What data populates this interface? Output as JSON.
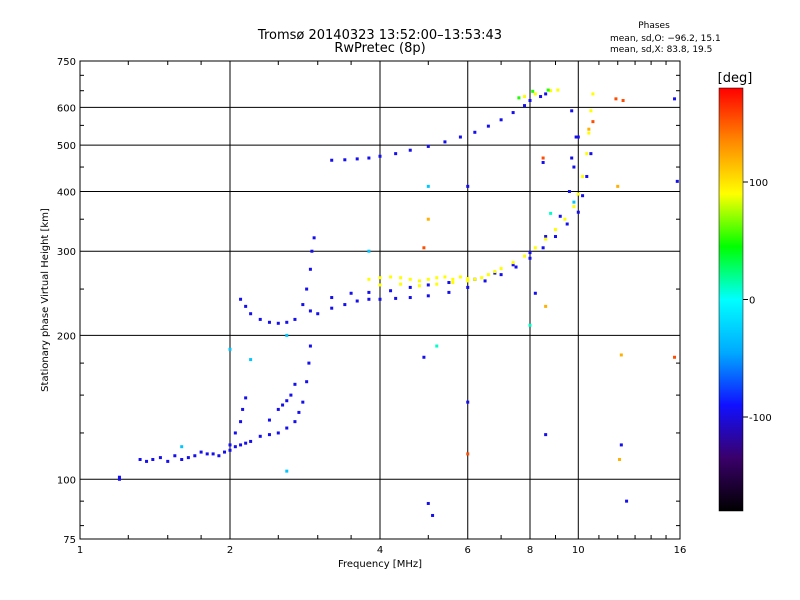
{
  "chart_data": {
    "type": "scatter",
    "title": "Tromsø 20140323 13:52:00–13:53:43",
    "subtitle": "RwPretec (8p)",
    "xlabel": "Frequency [MHz]",
    "ylabel": "Stationary phase Virtual Height [km]",
    "x_scale": "log",
    "y_scale": "log",
    "xlim": [
      1,
      16
    ],
    "ylim": [
      75,
      750
    ],
    "x_ticks": [
      {
        "v": 1,
        "label": "1"
      },
      {
        "v": 2,
        "label": "2"
      },
      {
        "v": 4,
        "label": "4"
      },
      {
        "v": 6,
        "label": "6"
      },
      {
        "v": 8,
        "label": "8"
      },
      {
        "v": 10,
        "label": "10"
      },
      {
        "v": 16,
        "label": "16"
      }
    ],
    "x_grid": [
      2,
      4,
      6,
      8,
      10
    ],
    "y_ticks": [
      {
        "v": 75,
        "label": "75"
      },
      {
        "v": 100,
        "label": "100"
      },
      {
        "v": 200,
        "label": "200"
      },
      {
        "v": 300,
        "label": "300"
      },
      {
        "v": 400,
        "label": "400"
      },
      {
        "v": 500,
        "label": "500"
      },
      {
        "v": 600,
        "label": "600"
      },
      {
        "v": 750,
        "label": "750"
      }
    ],
    "y_grid": [
      100,
      200,
      300,
      400,
      500,
      600
    ],
    "grid": true,
    "phases_label": "Phases",
    "phase_stats": [
      "mean, sd,O: −96.2, 15.1",
      "mean, sd,X:  83.8, 19.5"
    ],
    "colorbar": {
      "unit": "[deg]",
      "range": [
        -180,
        180
      ],
      "ticks": [
        {
          "v": 100,
          "label": "100"
        },
        {
          "v": 0,
          "label": "0"
        },
        {
          "v": -100,
          "label": "-100"
        }
      ],
      "stops": [
        "#000000",
        "#3a006a",
        "#1010ff",
        "#00aaff",
        "#00ffff",
        "#00ff00",
        "#ffff00",
        "#ff8800",
        "#ff0000"
      ]
    },
    "series": [
      {
        "phase": -95,
        "points": [
          [
            1.2,
            100
          ],
          [
            1.2,
            101
          ],
          [
            1.32,
            110
          ],
          [
            1.36,
            109
          ],
          [
            1.4,
            110
          ],
          [
            1.45,
            111
          ],
          [
            1.5,
            109
          ],
          [
            1.55,
            112
          ],
          [
            1.6,
            110
          ],
          [
            1.65,
            111
          ],
          [
            1.7,
            112
          ],
          [
            1.75,
            114
          ],
          [
            1.8,
            113
          ],
          [
            1.85,
            113
          ],
          [
            1.9,
            112
          ],
          [
            1.95,
            114
          ],
          [
            2.0,
            115
          ],
          [
            2.05,
            117
          ],
          [
            2.1,
            118
          ],
          [
            2.15,
            119
          ],
          [
            2.2,
            120
          ],
          [
            2.3,
            123
          ],
          [
            2.4,
            124
          ],
          [
            2.5,
            125
          ],
          [
            2.6,
            128
          ],
          [
            2.7,
            132
          ],
          [
            2.75,
            138
          ],
          [
            2.8,
            145
          ],
          [
            2.85,
            160
          ],
          [
            2.88,
            175
          ],
          [
            2.9,
            190
          ],
          [
            2.0,
            118
          ],
          [
            2.05,
            125
          ],
          [
            2.1,
            132
          ],
          [
            2.12,
            140
          ],
          [
            2.15,
            148
          ],
          [
            2.4,
            133
          ],
          [
            2.5,
            140
          ],
          [
            2.55,
            143
          ],
          [
            2.6,
            146
          ],
          [
            2.65,
            150
          ],
          [
            2.7,
            158
          ],
          [
            2.1,
            238
          ],
          [
            2.15,
            230
          ],
          [
            2.2,
            222
          ],
          [
            2.3,
            216
          ],
          [
            2.4,
            213
          ],
          [
            2.5,
            212
          ],
          [
            2.6,
            213
          ],
          [
            2.7,
            216
          ],
          [
            2.8,
            232
          ],
          [
            2.85,
            250
          ],
          [
            2.9,
            275
          ],
          [
            2.92,
            300
          ],
          [
            2.95,
            320
          ],
          [
            2.9,
            225
          ],
          [
            3.0,
            222
          ],
          [
            3.2,
            228
          ],
          [
            3.4,
            232
          ],
          [
            3.6,
            236
          ],
          [
            3.8,
            238
          ],
          [
            4.0,
            238
          ],
          [
            4.3,
            239
          ],
          [
            4.6,
            240
          ],
          [
            5.0,
            242
          ],
          [
            5.5,
            246
          ],
          [
            6.0,
            252
          ],
          [
            6.5,
            260
          ],
          [
            7.0,
            268
          ],
          [
            7.5,
            278
          ],
          [
            8.0,
            290
          ],
          [
            8.5,
            305
          ],
          [
            9.0,
            322
          ],
          [
            9.5,
            342
          ],
          [
            10.0,
            362
          ],
          [
            10.2,
            392
          ],
          [
            10.4,
            430
          ],
          [
            10.6,
            480
          ],
          [
            3.2,
            240
          ],
          [
            3.5,
            245
          ],
          [
            3.8,
            246
          ],
          [
            4.2,
            248
          ],
          [
            4.6,
            252
          ],
          [
            5.0,
            255
          ],
          [
            5.5,
            258
          ],
          [
            6.2,
            262
          ],
          [
            6.8,
            270
          ],
          [
            7.4,
            281
          ],
          [
            8.0,
            298
          ],
          [
            8.6,
            322
          ],
          [
            9.2,
            355
          ],
          [
            9.6,
            400
          ],
          [
            9.8,
            450
          ],
          [
            9.9,
            520
          ],
          [
            3.2,
            465
          ],
          [
            3.4,
            466
          ],
          [
            3.6,
            468
          ],
          [
            3.8,
            470
          ],
          [
            4.0,
            474
          ],
          [
            4.3,
            480
          ],
          [
            4.6,
            488
          ],
          [
            5.0,
            497
          ],
          [
            5.4,
            508
          ],
          [
            5.8,
            520
          ],
          [
            6.2,
            532
          ],
          [
            6.6,
            548
          ],
          [
            7.0,
            565
          ],
          [
            7.4,
            585
          ],
          [
            7.8,
            605
          ],
          [
            8.0,
            620
          ],
          [
            8.4,
            632
          ],
          [
            8.6,
            640
          ],
          [
            8.2,
            245
          ],
          [
            9.7,
            590
          ],
          [
            8.5,
            460
          ],
          [
            9.7,
            470
          ],
          [
            10.0,
            520
          ],
          [
            6.0,
            410
          ],
          [
            4.9,
            180
          ],
          [
            5.0,
            89
          ],
          [
            5.1,
            84
          ],
          [
            6.0,
            145
          ],
          [
            8.6,
            124
          ],
          [
            12.2,
            118
          ],
          [
            12.5,
            90
          ],
          [
            15.8,
            420
          ],
          [
            15.6,
            625
          ]
        ]
      },
      {
        "phase": 90,
        "points": [
          [
            3.8,
            262
          ],
          [
            4.0,
            264
          ],
          [
            4.2,
            265
          ],
          [
            4.4,
            264
          ],
          [
            4.6,
            262
          ],
          [
            4.8,
            260
          ],
          [
            5.0,
            262
          ],
          [
            5.2,
            264
          ],
          [
            5.4,
            265
          ],
          [
            5.6,
            262
          ],
          [
            5.8,
            265
          ],
          [
            6.0,
            263
          ],
          [
            6.2,
            262
          ],
          [
            6.4,
            264
          ],
          [
            6.6,
            268
          ],
          [
            6.8,
            272
          ],
          [
            7.0,
            276
          ],
          [
            7.4,
            284
          ],
          [
            7.8,
            293
          ],
          [
            8.2,
            305
          ],
          [
            8.6,
            318
          ],
          [
            9.0,
            333
          ],
          [
            9.4,
            350
          ],
          [
            9.8,
            372
          ],
          [
            10.0,
            395
          ],
          [
            10.2,
            430
          ],
          [
            10.4,
            480
          ],
          [
            10.5,
            530
          ],
          [
            10.6,
            590
          ],
          [
            10.7,
            640
          ],
          [
            4.0,
            255
          ],
          [
            4.4,
            256
          ],
          [
            4.8,
            254
          ],
          [
            5.2,
            256
          ],
          [
            5.6,
            258
          ],
          [
            6.0,
            260
          ],
          [
            7.8,
            632
          ],
          [
            8.2,
            640
          ],
          [
            8.8,
            650
          ],
          [
            9.1,
            652
          ]
        ]
      },
      {
        "phase": 50,
        "points": [
          [
            7.6,
            628
          ],
          [
            8.1,
            648
          ],
          [
            8.7,
            652
          ]
        ]
      },
      {
        "phase": 155,
        "points": [
          [
            4.9,
            305
          ],
          [
            6.0,
            113
          ],
          [
            8.5,
            470
          ],
          [
            11.9,
            625
          ],
          [
            12.3,
            620
          ],
          [
            15.6,
            180
          ],
          [
            10.7,
            560
          ]
        ]
      },
      {
        "phase": 120,
        "points": [
          [
            5.0,
            350
          ],
          [
            10.5,
            540
          ],
          [
            12.0,
            410
          ],
          [
            12.1,
            110
          ],
          [
            8.6,
            230
          ],
          [
            12.2,
            182
          ]
        ]
      },
      {
        "phase": 10,
        "points": [
          [
            5.2,
            190
          ],
          [
            8.0,
            210
          ],
          [
            8.8,
            360
          ]
        ]
      },
      {
        "phase": -30,
        "points": [
          [
            2.0,
            187
          ],
          [
            2.2,
            178
          ],
          [
            2.6,
            200
          ],
          [
            1.6,
            117
          ],
          [
            2.6,
            104
          ],
          [
            3.8,
            300
          ],
          [
            5.0,
            410
          ],
          [
            9.8,
            380
          ]
        ]
      }
    ]
  }
}
